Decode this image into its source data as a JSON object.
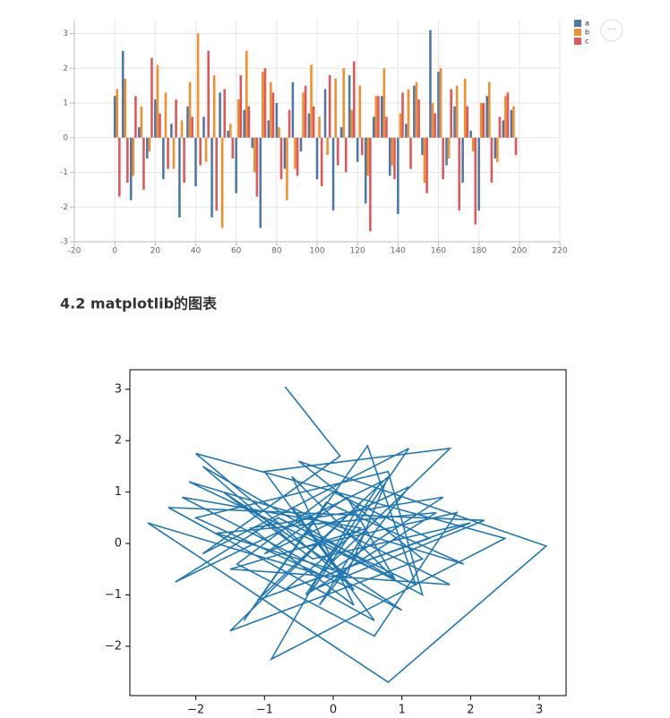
{
  "heading": "4.2 matplotlib的图表",
  "chart_data": [
    {
      "type": "bar",
      "x": [
        0,
        4,
        8,
        12,
        16,
        20,
        24,
        28,
        32,
        36,
        40,
        44,
        48,
        52,
        56,
        60,
        64,
        68,
        72,
        76,
        80,
        84,
        88,
        92,
        96,
        100,
        104,
        108,
        112,
        116,
        120,
        124,
        128,
        132,
        136,
        140,
        144,
        148,
        152,
        156,
        160,
        164,
        168,
        172,
        176,
        180,
        184,
        188,
        192,
        196
      ],
      "series": [
        {
          "name": "a",
          "color": "#4e79a7",
          "values": [
            1.2,
            2.5,
            -1.8,
            0.3,
            -0.6,
            1.1,
            -1.2,
            0.4,
            -2.3,
            0.9,
            -1.4,
            0.6,
            -2.3,
            1.3,
            0.2,
            -1.6,
            0.8,
            -0.3,
            -2.6,
            0.5,
            1.0,
            -0.9,
            1.6,
            -0.4,
            0.7,
            -1.2,
            1.4,
            -2.1,
            0.3,
            1.8,
            -0.7,
            -1.9,
            0.6,
            1.2,
            -1.1,
            -2.2,
            0.4,
            1.5,
            -0.5,
            3.1,
            1.9,
            -0.8,
            0.9,
            -1.3,
            0.2,
            -2.1,
            1.2,
            -0.6,
            0.5,
            0.8
          ]
        },
        {
          "name": "b",
          "color": "#f28e2b",
          "values": [
            1.4,
            1.7,
            -1.1,
            0.9,
            -0.4,
            2.1,
            1.3,
            -0.9,
            0.5,
            1.6,
            3.0,
            -0.7,
            1.8,
            -2.6,
            0.4,
            1.1,
            2.5,
            -1.0,
            1.9,
            1.6,
            0.3,
            -1.8,
            -0.9,
            1.3,
            2.1,
            0.6,
            -0.5,
            1.7,
            2.0,
            0.8,
            1.5,
            -1.1,
            1.2,
            2.0,
            -0.8,
            0.7,
            1.4,
            1.6,
            -1.3,
            1.0,
            2.0,
            -0.6,
            1.5,
            1.7,
            -0.4,
            1.0,
            1.6,
            -0.7,
            1.2,
            0.9
          ]
        },
        {
          "name": "c",
          "color": "#e15759",
          "values": [
            -1.7,
            -1.3,
            1.2,
            -1.5,
            2.3,
            0.7,
            -0.9,
            1.1,
            -1.3,
            0.6,
            -0.8,
            2.5,
            -2.1,
            1.4,
            -0.6,
            1.8,
            0.9,
            -1.7,
            2.0,
            1.3,
            -1.2,
            0.8,
            -1.1,
            1.5,
            0.9,
            -1.4,
            1.8,
            -0.8,
            -1.0,
            2.2,
            -0.5,
            -2.7,
            1.2,
            0.6,
            -1.2,
            1.3,
            -0.9,
            1.1,
            -1.6,
            0.7,
            -1.2,
            1.4,
            -2.1,
            0.9,
            -2.5,
            1.0,
            -1.3,
            0.6,
            1.3,
            -0.5
          ]
        }
      ],
      "xlim": [
        -20,
        220
      ],
      "xticks": [
        -20,
        0,
        20,
        40,
        60,
        80,
        100,
        120,
        140,
        160,
        180,
        200,
        220
      ],
      "ylim": [
        -3,
        3.4
      ],
      "yticks": [
        -3,
        -2,
        -1,
        0,
        1,
        2,
        3
      ],
      "grid": true,
      "legend": "right"
    },
    {
      "type": "line",
      "color": "#1f77b4",
      "x": [
        -0.7,
        0.1,
        -1.9,
        1.1,
        -0.3,
        2.2,
        -2.4,
        0.6,
        -1.0,
        1.7,
        -0.2,
        -2.7,
        0.8,
        3.1,
        -0.5,
        1.3,
        -1.5,
        0.4,
        -0.9,
        2.5,
        -2.0,
        0.0,
        1.6,
        -1.2,
        0.3,
        -0.6,
        0.9,
        -2.1,
        1.9,
        -0.1,
        -1.3,
        0.5,
        1.2,
        -0.8,
        -2.3,
        0.7,
        -0.4,
        1.5,
        -1.7,
        0.2,
        0.8,
        -1.1,
        2.0,
        -0.3,
        -1.6,
        1.0,
        -2.2,
        0.4,
        -0.7,
        1.4,
        0.0,
        -1.4,
        0.6,
        1.8,
        -0.5,
        -1.9,
        0.9,
        0.2,
        -1.0,
        1.1,
        -0.2,
        0.5,
        -1.5,
        1.7,
        -0.6,
        0.3,
        -2.0,
        0.8,
        1.3,
        -0.4
      ],
      "values": [
        3.05,
        1.7,
        -0.2,
        1.85,
        -0.9,
        0.45,
        0.7,
        -1.5,
        1.4,
        1.85,
        -0.6,
        0.4,
        -2.7,
        -0.05,
        1.6,
        -0.3,
        -1.7,
        0.8,
        -2.25,
        0.1,
        1.75,
        -0.5,
        0.9,
        0.3,
        -1.2,
        1.3,
        -0.7,
        1.2,
        -0.4,
        0.8,
        -1.5,
        1.9,
        -0.8,
        0.5,
        -0.75,
        1.2,
        -1.0,
        0.6,
        0.2,
        -0.6,
        1.3,
        -1.1,
        0.4,
        -0.3,
        1.0,
        -1.3,
        0.9,
        0.3,
        -0.9,
        0.1,
        1.0,
        -0.4,
        -1.8,
        0.6,
        -0.1,
        1.5,
        -0.7,
        0.9,
        -0.2,
        1.1,
        -1.2,
        0.3,
        -0.5,
        -0.8,
        0.7,
        -0.9,
        0.5,
        1.4,
        -1.0,
        0.2
      ],
      "xlim": [
        -2.96,
        3.39
      ],
      "xticks": [
        {
          "value": -2,
          "label": "−2"
        },
        {
          "value": -1,
          "label": "−1"
        },
        0,
        1,
        2,
        3
      ],
      "ylim": [
        -2.96,
        3.38
      ],
      "yticks": [
        {
          "value": -2,
          "label": "−2"
        },
        {
          "value": -1,
          "label": "−1"
        },
        0,
        1,
        2,
        3
      ],
      "grid": false
    }
  ]
}
